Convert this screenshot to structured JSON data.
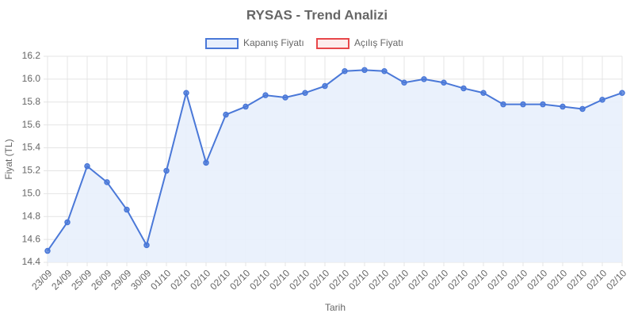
{
  "chart_data": {
    "type": "line",
    "title": "RYSAS - Trend Analizi",
    "x_label": "Tarih",
    "y_label": "Fiyat (TL)",
    "categories": [
      "23/09",
      "24/09",
      "25/09",
      "26/09",
      "29/09",
      "30/09",
      "01/10",
      "02/10",
      "02/10",
      "02/10",
      "02/10",
      "02/10",
      "02/10",
      "02/10",
      "02/10",
      "02/10",
      "02/10",
      "02/10",
      "02/10",
      "02/10",
      "02/10",
      "02/10",
      "02/10",
      "02/10",
      "02/10",
      "02/10",
      "02/10",
      "02/10",
      "02/10",
      "02/10"
    ],
    "series": [
      {
        "name": "Kapanış Fiyatı",
        "color": "#4a78d8",
        "fill": "#e8effc",
        "values": [
          14.5,
          14.75,
          15.24,
          15.1,
          14.86,
          14.55,
          15.2,
          15.88,
          15.27,
          15.69,
          15.76,
          15.86,
          15.84,
          15.88,
          15.94,
          16.07,
          16.08,
          16.07,
          15.97,
          16.0,
          15.97,
          15.92,
          15.88,
          15.78,
          15.78,
          15.78,
          15.76,
          15.74,
          15.82,
          15.88
        ]
      },
      {
        "name": "Açılış Fiyatı",
        "color": "#e8474a"
      }
    ],
    "ylim": [
      14.4,
      16.2
    ],
    "yticks": [
      14.4,
      14.6,
      14.8,
      {
        "value": 15.0,
        "label": "15.0"
      },
      15.2,
      15.4,
      15.6,
      15.8,
      {
        "value": 16.0,
        "label": "16.0"
      },
      16.2
    ],
    "grid": true,
    "legend": "top"
  }
}
